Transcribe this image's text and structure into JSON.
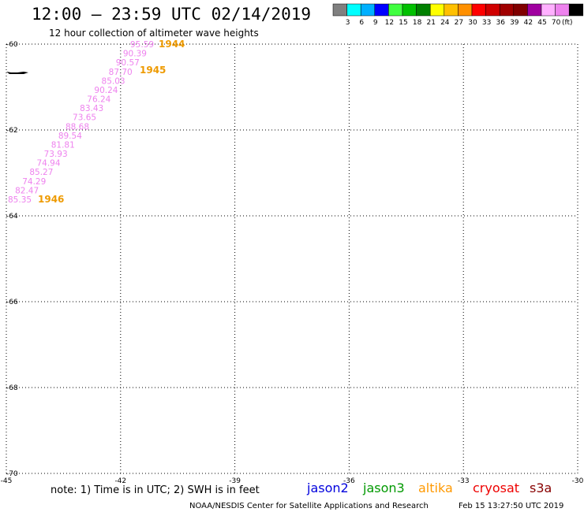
{
  "title": "12:00 – 23:59 UTC 02/14/2019",
  "subtitle": "12 hour collection of altimeter wave heights",
  "colorbar": {
    "unit_label": "(ft)",
    "swatches": [
      "#808080",
      "#00ffff",
      "#00b0ff",
      "#0000ff",
      "#40ff40",
      "#00c000",
      "#008000",
      "#ffff00",
      "#ffc000",
      "#ff9000",
      "#ff0000",
      "#d00000",
      "#a00000",
      "#800000",
      "#a000a0",
      "#ffb0ff",
      "#ee82ee",
      "#000000"
    ],
    "labels": [
      "3",
      "6",
      "9",
      "12",
      "15",
      "18",
      "21",
      "24",
      "27",
      "30",
      "33",
      "36",
      "39",
      "42",
      "45",
      "70"
    ]
  },
  "map": {
    "lon_range": [
      -45,
      -30
    ],
    "lat_range": [
      -70,
      -60
    ],
    "lon_ticks": [
      "-45",
      "-42",
      "-39",
      "-36",
      "-33",
      "-30"
    ],
    "lat_ticks": [
      "-60",
      "-62",
      "-64",
      "-66",
      "-68",
      "-70"
    ],
    "gridlines": "dotted"
  },
  "track": {
    "satellite": "altika",
    "color": "#ee82ee",
    "values": [
      "95.59",
      "90.39",
      "90.57",
      "87.70",
      "85.03",
      "90.24",
      "76.24",
      "83.43",
      "73.65",
      "88.68",
      "89.54",
      "81.81",
      "73.93",
      "74.94",
      "85.27",
      "74.29",
      "82.47",
      "85.35"
    ],
    "time_labels": [
      "1944",
      "1945",
      "1946"
    ],
    "time_color": "#ee9a00"
  },
  "note": "note:  1) Time is in UTC;  2) SWH is in feet",
  "satellites": [
    {
      "name": "jason2",
      "color": "#0000dd"
    },
    {
      "name": "jason3",
      "color": "#009900"
    },
    {
      "name": "altika",
      "color": "#ff9900"
    },
    {
      "name": "cryosat",
      "color": "#ee0000"
    },
    {
      "name": "s3a",
      "color": "#880000"
    }
  ],
  "credit_left": "NOAA/NESDIS Center for Satellite Applications and Research",
  "credit_right": "Feb 15 13:27:50 UTC 2019"
}
